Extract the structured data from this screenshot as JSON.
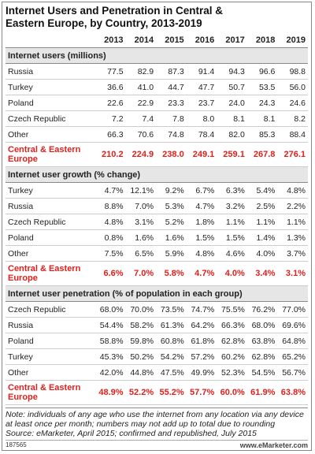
{
  "title": "Internet Users and Penetration in Central & Eastern Europe, by Country, 2013-2019",
  "columns": [
    "2013",
    "2014",
    "2015",
    "2016",
    "2017",
    "2018",
    "2019"
  ],
  "sections": [
    {
      "heading": "Internet users (millions)",
      "rows": [
        {
          "label": "Russia",
          "values": [
            "77.5",
            "82.9",
            "87.3",
            "91.4",
            "94.3",
            "96.6",
            "98.8"
          ]
        },
        {
          "label": "Turkey",
          "values": [
            "36.6",
            "41.0",
            "44.7",
            "47.7",
            "50.7",
            "53.5",
            "56.0"
          ]
        },
        {
          "label": "Poland",
          "values": [
            "22.6",
            "22.9",
            "23.3",
            "23.7",
            "24.0",
            "24.3",
            "24.6"
          ]
        },
        {
          "label": "Czech Republic",
          "values": [
            "7.2",
            "7.4",
            "7.8",
            "8.0",
            "8.1",
            "8.1",
            "8.2"
          ]
        },
        {
          "label": "Other",
          "values": [
            "66.3",
            "70.6",
            "74.8",
            "78.4",
            "82.0",
            "85.3",
            "88.4"
          ]
        }
      ],
      "total": {
        "label": "Central & Eastern Europe",
        "values": [
          "210.2",
          "224.9",
          "238.0",
          "249.1",
          "259.1",
          "267.8",
          "276.1"
        ]
      }
    },
    {
      "heading": "Internet user growth (% change)",
      "rows": [
        {
          "label": "Turkey",
          "values": [
            "4.7%",
            "12.1%",
            "9.2%",
            "6.7%",
            "6.3%",
            "5.4%",
            "4.8%"
          ]
        },
        {
          "label": "Russia",
          "values": [
            "8.8%",
            "7.0%",
            "5.3%",
            "4.7%",
            "3.2%",
            "2.5%",
            "2.2%"
          ]
        },
        {
          "label": "Czech Republic",
          "values": [
            "4.8%",
            "3.1%",
            "5.2%",
            "1.8%",
            "1.1%",
            "1.1%",
            "1.1%"
          ]
        },
        {
          "label": "Poland",
          "values": [
            "0.8%",
            "1.6%",
            "1.6%",
            "1.5%",
            "1.5%",
            "1.4%",
            "1.3%"
          ]
        },
        {
          "label": "Other",
          "values": [
            "7.5%",
            "6.5%",
            "5.9%",
            "4.8%",
            "4.6%",
            "4.0%",
            "3.7%"
          ]
        }
      ],
      "total": {
        "label": "Central & Eastern Europe",
        "values": [
          "6.6%",
          "7.0%",
          "5.8%",
          "4.7%",
          "4.0%",
          "3.4%",
          "3.1%"
        ]
      }
    },
    {
      "heading": "Internet user penetration (% of population in each group)",
      "rows": [
        {
          "label": "Czech Republic",
          "values": [
            "68.0%",
            "70.0%",
            "73.5%",
            "74.7%",
            "75.5%",
            "76.2%",
            "77.0%"
          ]
        },
        {
          "label": "Russia",
          "values": [
            "54.4%",
            "58.2%",
            "61.3%",
            "64.2%",
            "66.3%",
            "68.0%",
            "69.6%"
          ]
        },
        {
          "label": "Poland",
          "values": [
            "58.8%",
            "59.8%",
            "60.8%",
            "61.8%",
            "62.8%",
            "63.8%",
            "64.8%"
          ]
        },
        {
          "label": "Turkey",
          "values": [
            "45.3%",
            "50.2%",
            "54.2%",
            "57.2%",
            "60.2%",
            "62.8%",
            "65.2%"
          ]
        },
        {
          "label": "Other",
          "values": [
            "42.0%",
            "44.8%",
            "47.5%",
            "49.9%",
            "52.3%",
            "54.5%",
            "56.7%"
          ]
        }
      ],
      "total": {
        "label": "Central & Eastern Europe",
        "values": [
          "48.9%",
          "52.2%",
          "55.2%",
          "57.7%",
          "60.0%",
          "61.9%",
          "63.8%"
        ]
      }
    }
  ],
  "note": "Note: individuals of any age who use the internet from any location via any device at least once per month; numbers may not add up to total due to rounding",
  "source": "Source: eMarketer, April 2015; confirmed and republished, July 2015",
  "id": "187565",
  "logo": "www.eMarketer.com"
}
